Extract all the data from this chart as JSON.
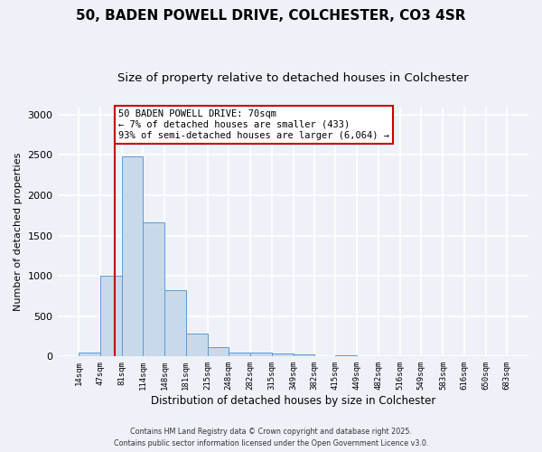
{
  "title_line1": "50, BADEN POWELL DRIVE, COLCHESTER, CO3 4SR",
  "title_line2": "Size of property relative to detached houses in Colchester",
  "xlabel": "Distribution of detached houses by size in Colchester",
  "ylabel": "Number of detached properties",
  "bin_edges": [
    14,
    47,
    81,
    114,
    148,
    181,
    215,
    248,
    282,
    315,
    349,
    382,
    415,
    449,
    482,
    516,
    549,
    583,
    616,
    650,
    683
  ],
  "bar_heights": [
    50,
    1000,
    2480,
    1660,
    820,
    280,
    115,
    50,
    50,
    40,
    25,
    0,
    20,
    0,
    0,
    0,
    0,
    0,
    0,
    0
  ],
  "bar_color": "#c9d9ec",
  "bar_edge_color": "#5b9bd5",
  "property_size": 70,
  "red_line_color": "#cc0000",
  "annotation_line1": "50 BADEN POWELL DRIVE: 70sqm",
  "annotation_line2": "← 7% of detached houses are smaller (433)",
  "annotation_line3": "93% of semi-detached houses are larger (6,064) →",
  "annotation_box_color": "#ffffff",
  "annotation_box_edge": "#cc0000",
  "ylim": [
    0,
    3100
  ],
  "yticks": [
    0,
    500,
    1000,
    1500,
    2000,
    2500,
    3000
  ],
  "footer_line1": "Contains HM Land Registry data © Crown copyright and database right 2025.",
  "footer_line2": "Contains public sector information licensed under the Open Government Licence v3.0.",
  "background_color": "#eef2f8",
  "plot_background": "#eef2f8",
  "grid_color": "#ffffff",
  "title_fontsize": 11,
  "subtitle_fontsize": 9.5,
  "ylabel_fontsize": 8,
  "xlabel_fontsize": 8.5
}
